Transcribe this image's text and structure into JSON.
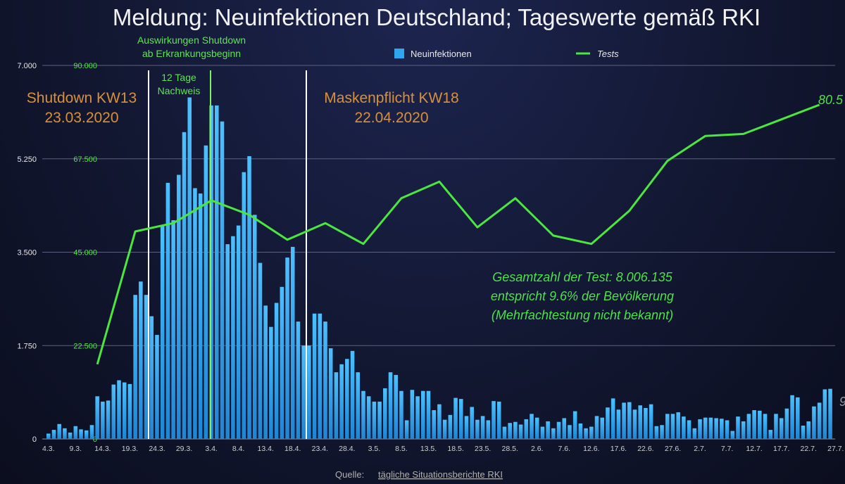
{
  "title": "Meldung: Neuinfektionen Deutschland; Tageswerte gemäß RKI",
  "source": {
    "prefix": "Quelle:",
    "link": "tägliche Situationsberichte RKI"
  },
  "legend": {
    "bars": "Neuinfektionen",
    "line": "Tests"
  },
  "annotations": {
    "shutdown": [
      "Shutdown KW13",
      "23.03.2020"
    ],
    "masks": [
      "Maskenpflicht KW18",
      "22.04.2020"
    ],
    "effect": [
      "Auswirkungen Shutdown",
      "ab Erkrankungsbeginn"
    ],
    "twelve_days": [
      "12 Tage",
      "Nachweis"
    ],
    "total_tests": [
      "Gesamtzahl der Test: 8.006.135",
      "entspricht 9.6% der Bevölkerung",
      "(Mehrfachtestung nicht bekannt)"
    ],
    "last_test_value": "80.5",
    "right_edge_fragment": "9"
  },
  "colors": {
    "bars": "#2fa7ee",
    "tests_line": "#4be63f",
    "shutdown_line": "#ffffff",
    "effect_line": "#7cf25a",
    "masks_line": "#ffffff",
    "orange_text": "#d8913a",
    "green_text": "#5ee553"
  },
  "chart_data": {
    "type": "bar",
    "title": "Meldung: Neuinfektionen Deutschland; Tageswerte gemäß RKI",
    "y_left": {
      "ylim": [
        0,
        7000
      ],
      "ticks": [
        0,
        1750,
        3500,
        5250,
        7000
      ],
      "tick_labels": [
        "0",
        "1.750",
        "3.500",
        "5.250",
        "7.000"
      ]
    },
    "y_right": {
      "ylim": [
        0,
        90000
      ],
      "ticks": [
        0,
        22500,
        45000,
        67500,
        90000
      ],
      "tick_labels": [
        "0",
        "22.500",
        "45.000",
        "67.500",
        "90.000"
      ]
    },
    "grid": true,
    "legend_position": "top",
    "x_tick_labels": [
      "4.3.",
      "9.3.",
      "14.3.",
      "19.3.",
      "24.3.",
      "29.3.",
      "3.4.",
      "8.4.",
      "13.4.",
      "18.4.",
      "23.4.",
      "28.4.",
      "3.5.",
      "8.5.",
      "13.5.",
      "18.5.",
      "23.5.",
      "28.5.",
      "2.6.",
      "7.6.",
      "12.6.",
      "17.6.",
      "22.6.",
      "27.6.",
      "2.7.",
      "7.7.",
      "12.7.",
      "17.7.",
      "22.7.",
      "27.7."
    ],
    "series": [
      {
        "name": "Neuinfektionen",
        "type": "bar",
        "axis": "left",
        "start_date": "4.3.",
        "values": [
          100,
          170,
          280,
          200,
          120,
          240,
          180,
          160,
          260,
          800,
          700,
          720,
          1020,
          1100,
          1060,
          1030,
          2700,
          2950,
          2700,
          2300,
          1950,
          4000,
          4800,
          4100,
          4950,
          5750,
          6400,
          4700,
          4600,
          5500,
          6250,
          6250,
          5950,
          3650,
          3800,
          4000,
          5000,
          5300,
          4200,
          3300,
          2500,
          2100,
          2550,
          2850,
          3400,
          3600,
          2200,
          1750,
          1750,
          2350,
          2350,
          2200,
          1700,
          1250,
          1400,
          1500,
          1650,
          1250,
          900,
          800,
          700,
          700,
          950,
          1250,
          1200,
          900,
          350,
          920,
          800,
          900,
          900,
          540,
          650,
          360,
          450,
          770,
          750,
          430,
          600,
          360,
          430,
          350,
          710,
          700,
          230,
          300,
          320,
          270,
          370,
          470,
          400,
          230,
          330,
          200,
          320,
          390,
          260,
          520,
          290,
          200,
          230,
          430,
          400,
          590,
          760,
          550,
          680,
          690,
          550,
          630,
          580,
          650,
          240,
          260,
          470,
          470,
          500,
          420,
          350,
          200,
          370,
          400,
          400,
          390,
          380,
          350,
          150,
          420,
          330,
          470,
          540,
          530,
          470,
          170,
          470,
          390,
          570,
          820,
          780,
          250,
          330,
          610,
          680,
          930,
          940
        ]
      },
      {
        "name": "Tests",
        "type": "line",
        "axis": "right",
        "x": [
          "13.3.",
          "20.3.",
          "27.3.",
          "3.4.",
          "10.4.",
          "17.4.",
          "24.4.",
          "1.5.",
          "8.5.",
          "15.5.",
          "22.5.",
          "29.5.",
          "5.6.",
          "12.6.",
          "19.6.",
          "26.6.",
          "3.7.",
          "10.7.",
          "17.7.",
          "24.7."
        ],
        "values": [
          18000,
          50000,
          52000,
          57500,
          54000,
          48000,
          52000,
          47000,
          58000,
          62000,
          51000,
          58000,
          49000,
          47000,
          55000,
          67000,
          73000,
          73500,
          77000,
          80500
        ]
      }
    ]
  }
}
